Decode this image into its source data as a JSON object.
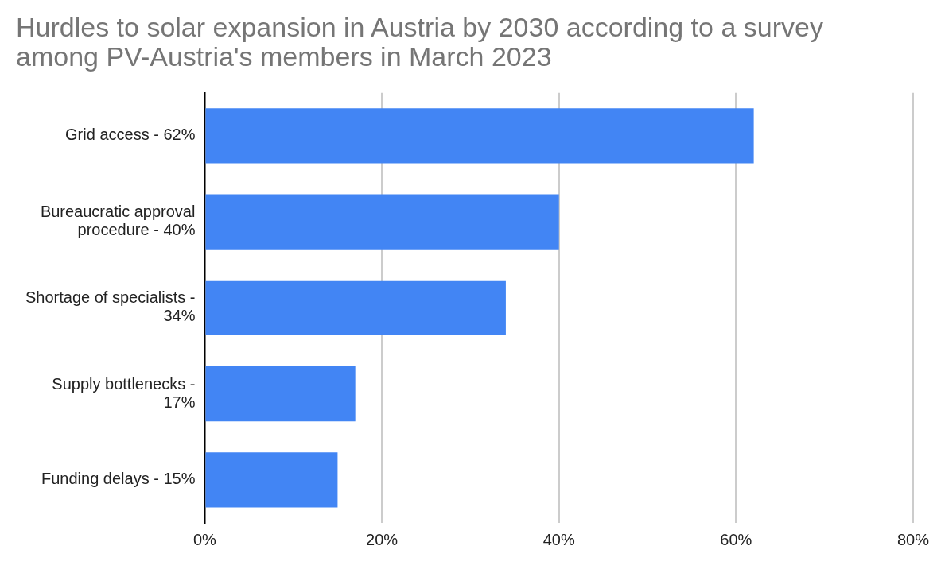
{
  "chart_data": {
    "type": "bar",
    "orientation": "horizontal",
    "title": "Hurdles to solar expansion in Austria by 2030 according to a survey among PV-Austria's members in March 2023",
    "categories": [
      "Grid access - 62%",
      "Bureaucratic approval procedure - 40%",
      "Shortage of specialists - 34%",
      "Supply bottlenecks - 17%",
      "Funding delays - 15%"
    ],
    "values": [
      62,
      40,
      34,
      17,
      15
    ],
    "color": "#4285f4",
    "xlim": [
      0,
      80
    ],
    "xticks": [
      {
        "value": 0,
        "label": "0%"
      },
      {
        "value": 20,
        "label": "20%"
      },
      {
        "value": 40,
        "label": "40%"
      },
      {
        "value": 60,
        "label": "60%"
      },
      {
        "value": 80,
        "label": "80%"
      }
    ],
    "grid": "x",
    "legend": false
  }
}
